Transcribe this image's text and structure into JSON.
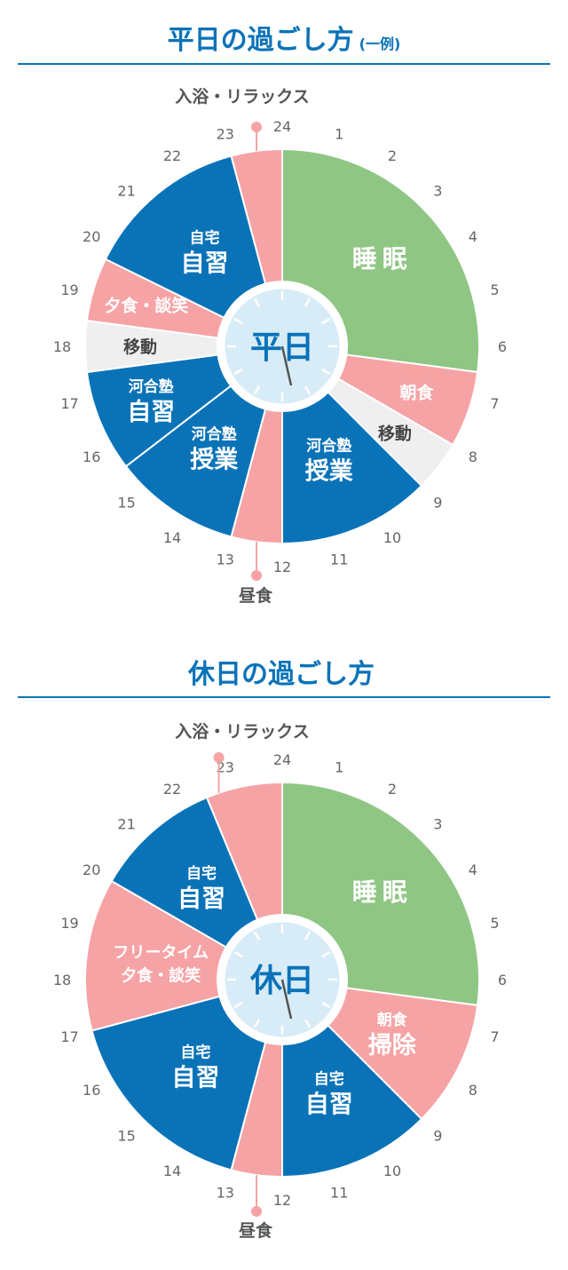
{
  "weekday": {
    "title": "平日の過ごし方",
    "title_suffix": "(一例)",
    "center_label": "平日"
  },
  "holiday": {
    "title": "休日の過ごし方",
    "title_suffix": "",
    "center_label": "休日"
  },
  "hour_labels": [
    "24",
    "1",
    "2",
    "3",
    "4",
    "5",
    "6",
    "7",
    "8",
    "9",
    "10",
    "11",
    "12",
    "13",
    "14",
    "15",
    "16",
    "17",
    "18",
    "19",
    "20",
    "21",
    "22",
    "23"
  ],
  "colors": {
    "sleep": "#8fc684",
    "pink": "#f6a3a5",
    "blue": "#0a73b8",
    "gray": "#efefef",
    "center": "#d8ecf8",
    "accent": "#0a73b8"
  },
  "chart_data": [
    {
      "type": "pie",
      "title": "平日の過ごし方",
      "unit": "hour",
      "segments": [
        {
          "start": 0,
          "end": 6.5,
          "lines": [
            "睡眠"
          ],
          "color": "sleep"
        },
        {
          "start": 6.5,
          "end": 8,
          "lines": [
            "朝食"
          ],
          "color": "pink"
        },
        {
          "start": 8,
          "end": 9,
          "lines": [
            "移動"
          ],
          "color": "gray"
        },
        {
          "start": 9,
          "end": 12,
          "lines": [
            "河合塾",
            "授業"
          ],
          "color": "blue"
        },
        {
          "start": 12,
          "end": 13,
          "lines": [],
          "color": "pink"
        },
        {
          "start": 13,
          "end": 15.5,
          "lines": [
            "河合塾",
            "授業"
          ],
          "color": "blue"
        },
        {
          "start": 15.5,
          "end": 17.5,
          "lines": [
            "河合塾",
            "自習"
          ],
          "color": "blue"
        },
        {
          "start": 17.5,
          "end": 18.5,
          "lines": [
            "移動"
          ],
          "color": "gray"
        },
        {
          "start": 18.5,
          "end": 19.75,
          "lines": [
            "夕食・談笑"
          ],
          "color": "pink"
        },
        {
          "start": 19.75,
          "end": 23,
          "lines": [
            "自宅",
            "自習"
          ],
          "color": "blue"
        },
        {
          "start": 23,
          "end": 24,
          "lines": [],
          "color": "pink"
        }
      ],
      "callouts": [
        {
          "label": "入浴・リラックス",
          "hour": 23.5
        },
        {
          "label": "昼食",
          "hour": 12.5
        }
      ]
    },
    {
      "type": "pie",
      "title": "休日の過ごし方",
      "unit": "hour",
      "segments": [
        {
          "start": 0,
          "end": 6.5,
          "lines": [
            "睡眠"
          ],
          "color": "sleep"
        },
        {
          "start": 6.5,
          "end": 9,
          "lines": [
            "朝食",
            "掃除"
          ],
          "color": "pink"
        },
        {
          "start": 9,
          "end": 12,
          "lines": [
            "自宅",
            "自習"
          ],
          "color": "blue"
        },
        {
          "start": 12,
          "end": 13,
          "lines": [],
          "color": "pink"
        },
        {
          "start": 13,
          "end": 17,
          "lines": [
            "自宅",
            "自習"
          ],
          "color": "blue"
        },
        {
          "start": 17,
          "end": 20,
          "lines": [
            "フリータイム",
            "夕食・談笑"
          ],
          "color": "pink"
        },
        {
          "start": 20,
          "end": 22.5,
          "lines": [
            "自宅",
            "自習"
          ],
          "color": "blue"
        },
        {
          "start": 22.5,
          "end": 24,
          "lines": [],
          "color": "pink"
        }
      ],
      "callouts": [
        {
          "label": "入浴・リラックス",
          "hour": 22.75
        },
        {
          "label": "昼食",
          "hour": 12.5
        }
      ]
    }
  ]
}
